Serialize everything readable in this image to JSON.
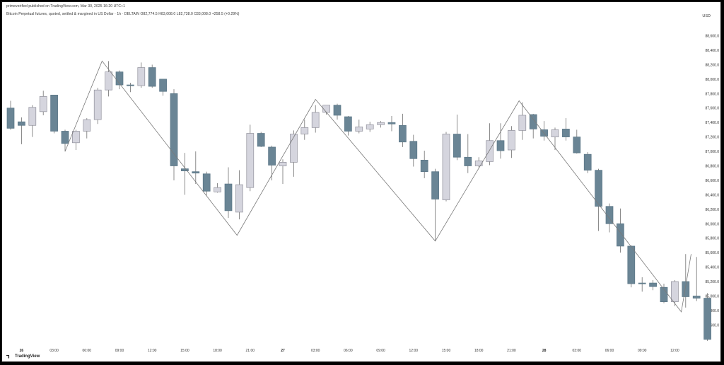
{
  "header": {
    "publisher": "primeverified published on TradingView.com, Mar 30, 2025 16:20 UTC+1",
    "symbol_line": "Bitcoin Perpetual futures, quoted, settled & margined in US Dollar · 1h · DELTAIN  O82,774.5  H83,008.0  L82,738.0  C83,008.0  +258.5 (+0.29%)"
  },
  "currency": "USD",
  "footer": {
    "brand": "TradingView"
  },
  "colors": {
    "up_fill": "#d5d5de",
    "up_border": "#8f8f9a",
    "down_fill": "#6a8595",
    "down_border": "#5a7585",
    "zigzag": "#7a7a7a",
    "wick": "#707070"
  },
  "chart_data": {
    "type": "candlestick",
    "ylim": [
      84300,
      88850
    ],
    "y_ticks": [
      84600,
      84800,
      85000,
      85200,
      85400,
      85600,
      85800,
      86000,
      86200,
      86400,
      86600,
      86800,
      87000,
      87200,
      87400,
      87600,
      87800,
      88000,
      88200,
      88400,
      88600
    ],
    "y_tick_labels": [
      "84,600.0",
      "84,800.0",
      "85,000.0",
      "85,200.0",
      "85,400.0",
      "85,600.0",
      "85,800.0",
      "86,000.0",
      "86,200.0",
      "86,400.0",
      "86,600.0",
      "86,800.0",
      "87,000.0",
      "87,200.0",
      "87,400.0",
      "87,600.0",
      "87,800.0",
      "88,000.0",
      "88,200.0",
      "88,400.0",
      "88,600.0"
    ],
    "x_ticks": [
      {
        "i": 1,
        "label": "26",
        "bold": true
      },
      {
        "i": 4,
        "label": "03:00",
        "bold": false
      },
      {
        "i": 7,
        "label": "06:00",
        "bold": false
      },
      {
        "i": 10,
        "label": "09:00",
        "bold": false
      },
      {
        "i": 13,
        "label": "12:00",
        "bold": false
      },
      {
        "i": 16,
        "label": "15:00",
        "bold": false
      },
      {
        "i": 19,
        "label": "18:00",
        "bold": false
      },
      {
        "i": 22,
        "label": "21:00",
        "bold": false
      },
      {
        "i": 25,
        "label": "27",
        "bold": true
      },
      {
        "i": 28,
        "label": "03:00",
        "bold": false
      },
      {
        "i": 31,
        "label": "06:00",
        "bold": false
      },
      {
        "i": 34,
        "label": "09:00",
        "bold": false
      },
      {
        "i": 37,
        "label": "12:00",
        "bold": false
      },
      {
        "i": 40,
        "label": "15:00",
        "bold": false
      },
      {
        "i": 43,
        "label": "18:00",
        "bold": false
      },
      {
        "i": 46,
        "label": "21:00",
        "bold": false
      },
      {
        "i": 49,
        "label": "28",
        "bold": true
      },
      {
        "i": 52,
        "label": "03:00",
        "bold": false
      },
      {
        "i": 55,
        "label": "06:00",
        "bold": false
      },
      {
        "i": 58,
        "label": "09:00",
        "bold": false
      },
      {
        "i": 61,
        "label": "12:00",
        "bold": false
      }
    ],
    "candles": [
      {
        "o": 87600,
        "h": 87700,
        "l": 87300,
        "c": 87320
      },
      {
        "o": 87410,
        "h": 87470,
        "l": 87100,
        "c": 87360
      },
      {
        "o": 87360,
        "h": 87640,
        "l": 87200,
        "c": 87610
      },
      {
        "o": 87550,
        "h": 87840,
        "l": 87500,
        "c": 87760
      },
      {
        "o": 87780,
        "h": 87780,
        "l": 87250,
        "c": 87280
      },
      {
        "o": 87280,
        "h": 87300,
        "l": 87000,
        "c": 87110
      },
      {
        "o": 87120,
        "h": 87300,
        "l": 87020,
        "c": 87280
      },
      {
        "o": 87280,
        "h": 87460,
        "l": 87180,
        "c": 87440
      },
      {
        "o": 87440,
        "h": 87880,
        "l": 87380,
        "c": 87850
      },
      {
        "o": 87850,
        "h": 88250,
        "l": 87760,
        "c": 88100
      },
      {
        "o": 88100,
        "h": 88120,
        "l": 87860,
        "c": 87920
      },
      {
        "o": 87920,
        "h": 87950,
        "l": 87820,
        "c": 87910
      },
      {
        "o": 87910,
        "h": 88230,
        "l": 87880,
        "c": 88160
      },
      {
        "o": 88160,
        "h": 88200,
        "l": 87880,
        "c": 87900
      },
      {
        "o": 88000,
        "h": 88000,
        "l": 87770,
        "c": 87830
      },
      {
        "o": 87800,
        "h": 87860,
        "l": 86600,
        "c": 86800
      },
      {
        "o": 86760,
        "h": 86980,
        "l": 86400,
        "c": 86730
      },
      {
        "o": 86720,
        "h": 87000,
        "l": 86550,
        "c": 86700
      },
      {
        "o": 86690,
        "h": 86720,
        "l": 86390,
        "c": 86450
      },
      {
        "o": 86440,
        "h": 86560,
        "l": 86430,
        "c": 86500
      },
      {
        "o": 86550,
        "h": 86780,
        "l": 86080,
        "c": 86180
      },
      {
        "o": 86160,
        "h": 86740,
        "l": 86060,
        "c": 86540
      },
      {
        "o": 86500,
        "h": 87370,
        "l": 86450,
        "c": 87250
      },
      {
        "o": 87250,
        "h": 87270,
        "l": 87060,
        "c": 87070
      },
      {
        "o": 87060,
        "h": 87080,
        "l": 86600,
        "c": 86810
      },
      {
        "o": 86800,
        "h": 86890,
        "l": 86550,
        "c": 86850
      },
      {
        "o": 86850,
        "h": 87290,
        "l": 86650,
        "c": 87240
      },
      {
        "o": 87240,
        "h": 87440,
        "l": 87160,
        "c": 87330
      },
      {
        "o": 87330,
        "h": 87640,
        "l": 87260,
        "c": 87540
      },
      {
        "o": 87540,
        "h": 87640,
        "l": 87510,
        "c": 87640
      },
      {
        "o": 87640,
        "h": 87660,
        "l": 87440,
        "c": 87500
      },
      {
        "o": 87480,
        "h": 87490,
        "l": 87220,
        "c": 87280
      },
      {
        "o": 87280,
        "h": 87440,
        "l": 87250,
        "c": 87340
      },
      {
        "o": 87310,
        "h": 87410,
        "l": 87270,
        "c": 87370
      },
      {
        "o": 87370,
        "h": 87420,
        "l": 87330,
        "c": 87400
      },
      {
        "o": 87400,
        "h": 87490,
        "l": 87280,
        "c": 87380
      },
      {
        "o": 87360,
        "h": 87520,
        "l": 87060,
        "c": 87130
      },
      {
        "o": 87140,
        "h": 87230,
        "l": 86790,
        "c": 86900
      },
      {
        "o": 86880,
        "h": 87010,
        "l": 86630,
        "c": 86720
      },
      {
        "o": 86720,
        "h": 86760,
        "l": 85760,
        "c": 86340
      },
      {
        "o": 86330,
        "h": 87270,
        "l": 86310,
        "c": 87240
      },
      {
        "o": 87240,
        "h": 87510,
        "l": 86880,
        "c": 86920
      },
      {
        "o": 86920,
        "h": 87240,
        "l": 86700,
        "c": 86800
      },
      {
        "o": 86800,
        "h": 86920,
        "l": 86780,
        "c": 86870
      },
      {
        "o": 86860,
        "h": 87390,
        "l": 86810,
        "c": 87150
      },
      {
        "o": 87150,
        "h": 87390,
        "l": 86900,
        "c": 87010
      },
      {
        "o": 87020,
        "h": 87350,
        "l": 86910,
        "c": 87290
      },
      {
        "o": 87290,
        "h": 87680,
        "l": 87160,
        "c": 87500
      },
      {
        "o": 87510,
        "h": 87520,
        "l": 87180,
        "c": 87310
      },
      {
        "o": 87300,
        "h": 87420,
        "l": 87150,
        "c": 87210
      },
      {
        "o": 87200,
        "h": 87330,
        "l": 87020,
        "c": 87300
      },
      {
        "o": 87310,
        "h": 87460,
        "l": 87150,
        "c": 87200
      },
      {
        "o": 87200,
        "h": 87300,
        "l": 86970,
        "c": 86980
      },
      {
        "o": 86960,
        "h": 86990,
        "l": 86700,
        "c": 86740
      },
      {
        "o": 86740,
        "h": 86760,
        "l": 85900,
        "c": 86240
      },
      {
        "o": 86240,
        "h": 86280,
        "l": 85880,
        "c": 86000
      },
      {
        "o": 86000,
        "h": 86210,
        "l": 85600,
        "c": 85690
      },
      {
        "o": 85690,
        "h": 85700,
        "l": 85120,
        "c": 85170
      },
      {
        "o": 85180,
        "h": 85260,
        "l": 85060,
        "c": 85170
      },
      {
        "o": 85180,
        "h": 85220,
        "l": 85080,
        "c": 85130
      },
      {
        "o": 85120,
        "h": 85170,
        "l": 84900,
        "c": 84920
      },
      {
        "o": 84920,
        "h": 85220,
        "l": 84860,
        "c": 85200
      },
      {
        "o": 85200,
        "h": 85580,
        "l": 84840,
        "c": 84990
      },
      {
        "o": 85000,
        "h": 85540,
        "l": 84930,
        "c": 84970
      },
      {
        "o": 84970,
        "h": 85040,
        "l": 84380,
        "c": 84400
      }
    ],
    "zigzag": [
      {
        "i": 5,
        "p": 87000
      },
      {
        "i": 8.4,
        "p": 88250
      },
      {
        "i": 20.8,
        "p": 85840
      },
      {
        "i": 28,
        "p": 87720
      },
      {
        "i": 39,
        "p": 85760
      },
      {
        "i": 46.7,
        "p": 87700
      },
      {
        "i": 61.6,
        "p": 84780
      },
      {
        "i": 62.5,
        "p": 85580
      }
    ]
  }
}
